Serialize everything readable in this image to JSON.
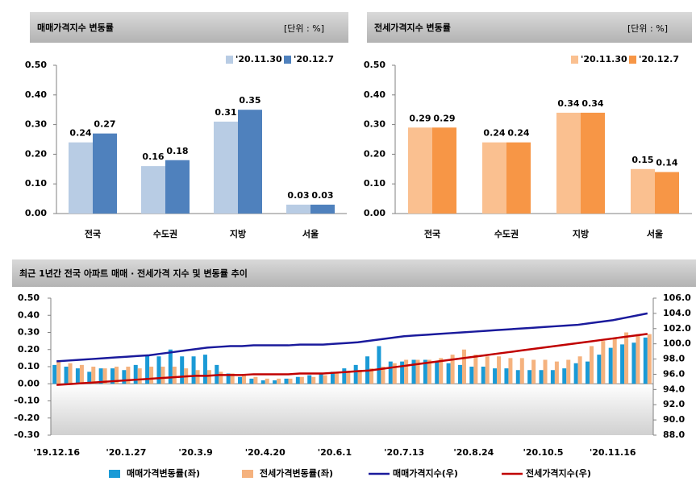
{
  "chart_data": [
    {
      "type": "bar",
      "title": "매매가격지수 변동률",
      "unit": "[단위 : %]",
      "categories": [
        "전국",
        "수도권",
        "지방",
        "서울"
      ],
      "series": [
        {
          "name": "'20.11.30",
          "color": "#b8cce4",
          "values": [
            0.24,
            0.16,
            0.31,
            0.03
          ]
        },
        {
          "name": "'20.12.7",
          "color": "#4f81bd",
          "values": [
            0.27,
            0.18,
            0.35,
            0.03
          ]
        }
      ],
      "ylim": [
        0,
        0.5
      ],
      "yticks": [
        {
          "value": 0,
          "label": "0.00"
        },
        {
          "value": 0.1,
          "label": "0.10"
        },
        {
          "value": 0.2,
          "label": "0.20"
        },
        {
          "value": 0.3,
          "label": "0.30"
        },
        {
          "value": 0.4,
          "label": "0.40"
        },
        {
          "value": 0.5,
          "label": "0.50"
        }
      ],
      "legend": "top-right"
    },
    {
      "type": "bar",
      "title": "전세가격지수 변동률",
      "unit": "[단위 : %]",
      "categories": [
        "전국",
        "수도권",
        "지방",
        "서울"
      ],
      "series": [
        {
          "name": "'20.11.30",
          "color": "#fac090",
          "values": [
            0.29,
            0.24,
            0.34,
            0.15
          ]
        },
        {
          "name": "'20.12.7",
          "color": "#f79646",
          "values": [
            0.29,
            0.24,
            0.34,
            0.14
          ]
        }
      ],
      "ylim": [
        0,
        0.5
      ],
      "yticks": [
        {
          "value": 0,
          "label": "0.00"
        },
        {
          "value": 0.1,
          "label": "0.10"
        },
        {
          "value": 0.2,
          "label": "0.20"
        },
        {
          "value": 0.3,
          "label": "0.30"
        },
        {
          "value": 0.4,
          "label": "0.40"
        },
        {
          "value": 0.5,
          "label": "0.50"
        }
      ],
      "legend": "top-right"
    },
    {
      "type": "combo",
      "title": "최근 1년간 전국 아파트 매매 · 전세가격 지수 및 변동률 추이",
      "categories": [
        "'19.12.16",
        null,
        null,
        null,
        null,
        null,
        "'20.1.27",
        null,
        null,
        null,
        null,
        null,
        "'20.3.9",
        null,
        null,
        null,
        null,
        null,
        "'20.4.20",
        null,
        null,
        null,
        null,
        null,
        "'20.6.1",
        null,
        null,
        null,
        null,
        null,
        "'20.7.13",
        null,
        null,
        null,
        null,
        null,
        "'20.8.24",
        null,
        null,
        null,
        null,
        null,
        "'20.10.5",
        null,
        null,
        null,
        null,
        null,
        "'20.11.16",
        null,
        null,
        null
      ],
      "series": [
        {
          "name": "매매가격변동률(좌)",
          "kind": "bar",
          "color": "#1a9ad6",
          "values": [
            0.11,
            0.1,
            0.09,
            0.07,
            0.09,
            0.09,
            0.08,
            0.11,
            0.17,
            0.16,
            0.2,
            0.16,
            0.16,
            0.17,
            0.11,
            0.06,
            0.04,
            0.03,
            0.02,
            0.02,
            0.03,
            0.04,
            0.05,
            0.06,
            0.07,
            0.09,
            0.11,
            0.16,
            0.22,
            0.13,
            0.13,
            0.14,
            0.14,
            0.13,
            0.12,
            0.11,
            0.1,
            0.1,
            0.09,
            0.09,
            0.08,
            0.08,
            0.08,
            0.08,
            0.09,
            0.12,
            0.13,
            0.17,
            0.21,
            0.23,
            0.24,
            0.27
          ]
        },
        {
          "name": "전세가격변동률(좌)",
          "kind": "bar",
          "color": "#f5b27e",
          "values": [
            0.13,
            0.12,
            0.11,
            0.1,
            0.09,
            0.1,
            0.1,
            0.09,
            0.1,
            0.1,
            0.1,
            0.09,
            0.08,
            0.08,
            0.07,
            0.06,
            0.05,
            0.04,
            0.03,
            0.03,
            0.03,
            0.04,
            0.04,
            0.05,
            0.06,
            0.07,
            0.08,
            0.09,
            0.1,
            0.12,
            0.14,
            0.14,
            0.14,
            0.15,
            0.17,
            0.2,
            0.17,
            0.16,
            0.16,
            0.15,
            0.15,
            0.14,
            0.14,
            0.13,
            0.14,
            0.16,
            0.22,
            0.25,
            0.27,
            0.3,
            0.29,
            0.29
          ]
        },
        {
          "name": "매매가격지수(우)",
          "kind": "line",
          "axis": "y2",
          "color": "#1a1a9c",
          "values": [
            97.7,
            97.8,
            97.9,
            98.0,
            98.1,
            98.2,
            98.3,
            98.4,
            98.5,
            98.7,
            98.9,
            99.1,
            99.3,
            99.5,
            99.6,
            99.7,
            99.7,
            99.8,
            99.8,
            99.8,
            99.8,
            99.9,
            99.9,
            99.9,
            100.0,
            100.1,
            100.2,
            100.4,
            100.6,
            100.8,
            101.0,
            101.1,
            101.2,
            101.3,
            101.4,
            101.5,
            101.6,
            101.7,
            101.8,
            101.9,
            102.0,
            102.1,
            102.2,
            102.3,
            102.4,
            102.5,
            102.7,
            102.9,
            103.1,
            103.4,
            103.7,
            104.0
          ]
        },
        {
          "name": "전세가격지수(우)",
          "kind": "line",
          "axis": "y2",
          "color": "#c00000",
          "values": [
            94.6,
            94.7,
            94.8,
            94.9,
            95.0,
            95.1,
            95.2,
            95.3,
            95.4,
            95.5,
            95.6,
            95.7,
            95.8,
            95.8,
            95.9,
            95.9,
            95.9,
            96.0,
            96.0,
            96.0,
            96.0,
            96.1,
            96.1,
            96.1,
            96.2,
            96.3,
            96.4,
            96.5,
            96.7,
            96.9,
            97.1,
            97.3,
            97.5,
            97.7,
            97.9,
            98.1,
            98.3,
            98.5,
            98.7,
            98.9,
            99.1,
            99.3,
            99.5,
            99.7,
            99.9,
            100.1,
            100.3,
            100.5,
            100.7,
            100.9,
            101.1,
            101.3
          ]
        }
      ],
      "ylim": [
        -0.3,
        0.5
      ],
      "yticks": [
        {
          "value": -0.3,
          "label": "-0.30"
        },
        {
          "value": -0.2,
          "label": "-0.20"
        },
        {
          "value": -0.1,
          "label": "-0.10"
        },
        {
          "value": 0,
          "label": "0.00"
        },
        {
          "value": 0.1,
          "label": "0.10"
        },
        {
          "value": 0.2,
          "label": "0.20"
        },
        {
          "value": 0.3,
          "label": "0.30"
        },
        {
          "value": 0.4,
          "label": "0.40"
        },
        {
          "value": 0.5,
          "label": "0.50"
        }
      ],
      "y2lim": [
        88,
        106
      ],
      "y2ticks": [
        {
          "value": 88,
          "label": "88.0"
        },
        {
          "value": 90,
          "label": "90.0"
        },
        {
          "value": 92,
          "label": "92.0"
        },
        {
          "value": 94,
          "label": "94.0"
        },
        {
          "value": 96,
          "label": "96.0"
        },
        {
          "value": 98,
          "label": "98.0"
        },
        {
          "value": 100,
          "label": "100.0"
        },
        {
          "value": 102,
          "label": "102.0"
        },
        {
          "value": 104,
          "label": "104.0"
        },
        {
          "value": 106,
          "label": "106.0"
        }
      ],
      "legend": "bottom"
    }
  ]
}
